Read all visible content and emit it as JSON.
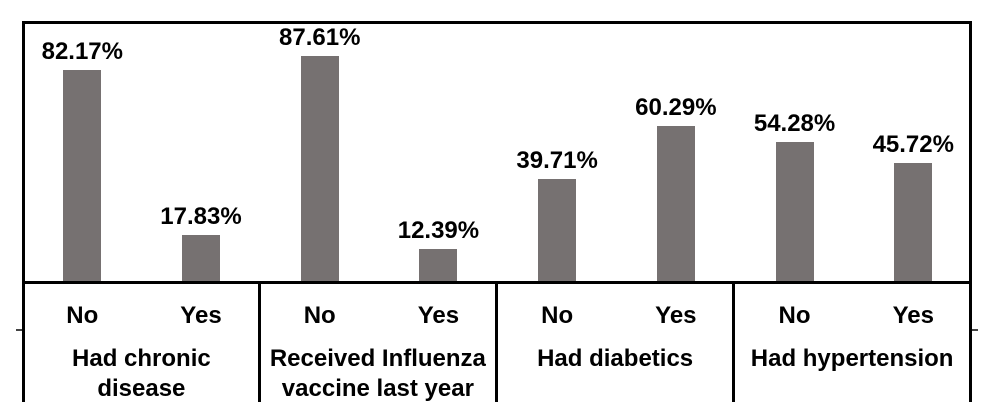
{
  "chart_data": {
    "type": "bar",
    "title": "",
    "xlabel": "",
    "ylabel": "",
    "unit": "%",
    "ylim": [
      0,
      100
    ],
    "grid": false,
    "legend": false,
    "bar_color": "#767171",
    "axis_color": "#000000",
    "label_color": "#000000",
    "groups": [
      {
        "label": "Had chronic disease",
        "label_lines": [
          "Had chronic",
          "disease"
        ],
        "categories": [
          "No",
          "Yes"
        ],
        "values": [
          82.17,
          17.83
        ],
        "value_labels": [
          "82.17%",
          "17.83%"
        ]
      },
      {
        "label": "Received Influenza vaccine last year",
        "label_lines": [
          "Received Influenza",
          "vaccine last year"
        ],
        "categories": [
          "No",
          "Yes"
        ],
        "values": [
          87.61,
          12.39
        ],
        "value_labels": [
          "87.61%",
          "12.39%"
        ]
      },
      {
        "label": "Had diabetics",
        "label_lines": [
          "Had diabetics"
        ],
        "categories": [
          "No",
          "Yes"
        ],
        "values": [
          39.71,
          60.29
        ],
        "value_labels": [
          "39.71%",
          "60.29%"
        ]
      },
      {
        "label": "Had hypertension",
        "label_lines": [
          "Had hypertension"
        ],
        "categories": [
          "No",
          "Yes"
        ],
        "values": [
          54.28,
          45.72
        ],
        "value_labels": [
          "54.28%",
          "45.72%"
        ]
      }
    ]
  }
}
